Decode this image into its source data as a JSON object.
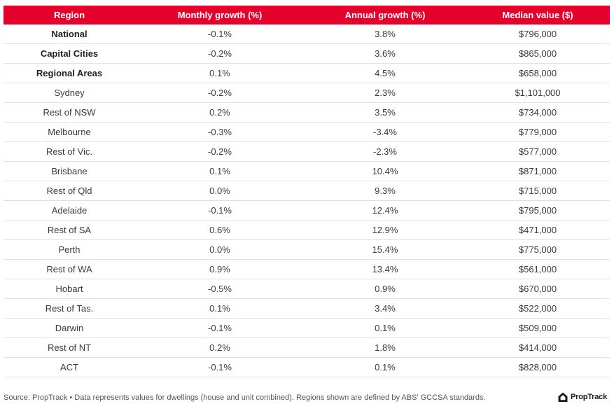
{
  "table": {
    "headers": [
      "Region",
      "Monthly growth (%)",
      "Annual growth (%)",
      "Median value ($)"
    ],
    "header_color": "#e4022d",
    "rows": [
      {
        "region": "National",
        "bold": true,
        "monthly": "-0.1%",
        "annual": "3.8%",
        "median": "$796,000"
      },
      {
        "region": "Capital Cities",
        "bold": true,
        "monthly": "-0.2%",
        "annual": "3.6%",
        "median": "$865,000"
      },
      {
        "region": "Regional Areas",
        "bold": true,
        "monthly": "0.1%",
        "annual": "4.5%",
        "median": "$658,000"
      },
      {
        "region": "Sydney",
        "bold": false,
        "monthly": "-0.2%",
        "annual": "2.3%",
        "median": "$1,101,000"
      },
      {
        "region": "Rest of NSW",
        "bold": false,
        "monthly": "0.2%",
        "annual": "3.5%",
        "median": "$734,000"
      },
      {
        "region": "Melbourne",
        "bold": false,
        "monthly": "-0.3%",
        "annual": "-3.4%",
        "median": "$779,000"
      },
      {
        "region": "Rest of Vic.",
        "bold": false,
        "monthly": "-0.2%",
        "annual": "-2.3%",
        "median": "$577,000"
      },
      {
        "region": "Brisbane",
        "bold": false,
        "monthly": "0.1%",
        "annual": "10.4%",
        "median": "$871,000"
      },
      {
        "region": "Rest of Qld",
        "bold": false,
        "monthly": "0.0%",
        "annual": "9.3%",
        "median": "$715,000"
      },
      {
        "region": "Adelaide",
        "bold": false,
        "monthly": "-0.1%",
        "annual": "12.4%",
        "median": "$795,000"
      },
      {
        "region": "Rest of SA",
        "bold": false,
        "monthly": "0.6%",
        "annual": "12.9%",
        "median": "$471,000"
      },
      {
        "region": "Perth",
        "bold": false,
        "monthly": "0.0%",
        "annual": "15.4%",
        "median": "$775,000"
      },
      {
        "region": "Rest of WA",
        "bold": false,
        "monthly": "0.9%",
        "annual": "13.4%",
        "median": "$561,000"
      },
      {
        "region": "Hobart",
        "bold": false,
        "monthly": "-0.5%",
        "annual": "0.9%",
        "median": "$670,000"
      },
      {
        "region": "Rest of Tas.",
        "bold": false,
        "monthly": "0.1%",
        "annual": "3.4%",
        "median": "$522,000"
      },
      {
        "region": "Darwin",
        "bold": false,
        "monthly": "-0.1%",
        "annual": "0.1%",
        "median": "$509,000"
      },
      {
        "region": "Rest of NT",
        "bold": false,
        "monthly": "0.2%",
        "annual": "1.8%",
        "median": "$414,000"
      },
      {
        "region": "ACT",
        "bold": false,
        "monthly": "-0.1%",
        "annual": "0.1%",
        "median": "$828,000"
      }
    ]
  },
  "footer": {
    "source": "Source: PropTrack • Data represents values for dwellings (house and unit combined). Regions shown are defined by ABS' GCCSA standards.",
    "brand": "PropTrack",
    "brand_icon": "house-logo-icon"
  }
}
